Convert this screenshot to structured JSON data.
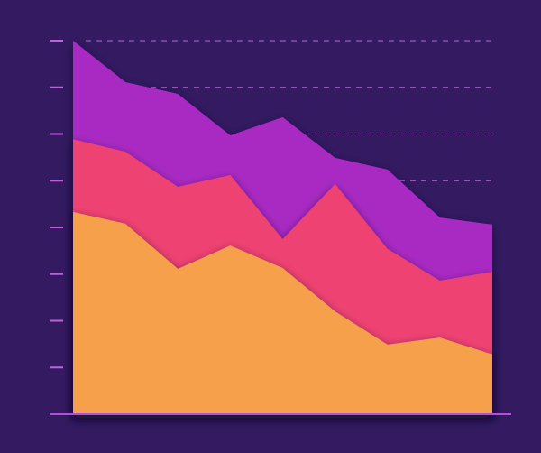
{
  "chart_data": {
    "type": "area",
    "stacked": true,
    "categories": [
      null,
      null,
      null,
      null,
      null,
      null,
      null,
      null,
      null
    ],
    "series": [
      {
        "color": "#f7a04b",
        "values": [
          4.33,
          4.08,
          3.11,
          3.61,
          3.13,
          2.2,
          1.49,
          1.64,
          1.28
        ]
      },
      {
        "color": "#ee4272",
        "values": [
          1.56,
          1.54,
          1.76,
          1.51,
          0.62,
          2.73,
          2.05,
          1.22,
          1.77
        ]
      },
      {
        "color": "#a92ac3",
        "values": [
          2.11,
          1.49,
          1.99,
          0.85,
          2.61,
          0.56,
          1.7,
          1.35,
          1.01
        ]
      }
    ],
    "ylim": [
      0,
      8
    ],
    "yticks": [
      0,
      1,
      2,
      3,
      4,
      5,
      6,
      7,
      8
    ],
    "grid": true
  }
}
